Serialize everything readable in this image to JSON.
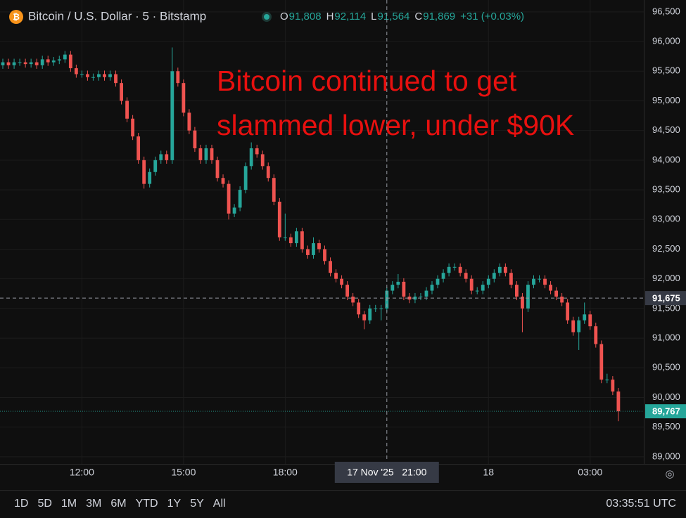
{
  "chart_data": {
    "type": "candlestick",
    "header": {
      "symbol": "Bitcoin / U.S. Dollar · 5 · Bitstamp",
      "o_key": "O",
      "o": "91,808",
      "h_key": "H",
      "h": "92,114",
      "l_key": "L",
      "l": "91,564",
      "c_key": "C",
      "c": "91,869",
      "change": "+31 (+0.03%)"
    },
    "annotation": [
      "Bitcoin continued to get",
      "slammed lower, under $90K"
    ],
    "up_color": "#26a69a",
    "down_color": "#ef5350",
    "annotation_color": "#e8100f",
    "open": [
      95600,
      95650,
      95600,
      95650,
      95650,
      95620,
      95650,
      95600,
      95700,
      95650,
      95680,
      95700,
      95780,
      95550,
      95450,
      95450,
      95400,
      95400,
      95450,
      95400,
      95450,
      95300,
      95000,
      94700,
      94400,
      94000,
      93600,
      93800,
      94000,
      94100,
      94000,
      95500,
      95300,
      94800,
      94500,
      94200,
      94000,
      94200,
      94000,
      93700,
      93600,
      93100,
      93200,
      93500,
      93900,
      94200,
      94100,
      93900,
      93700,
      93300,
      92700,
      92700,
      92600,
      92800,
      92500,
      92400,
      92600,
      92500,
      92300,
      92100,
      92000,
      91900,
      91700,
      91600,
      91400,
      91300,
      91500,
      91500,
      91500,
      91800,
      91900,
      91950,
      91700,
      91650,
      91700,
      91700,
      91800,
      91900,
      92000,
      92100,
      92200,
      92200,
      92100,
      92000,
      91800,
      91800,
      91900,
      92000,
      92100,
      92200,
      92100,
      91900,
      91700,
      91500,
      91900,
      92000,
      92000,
      91900,
      91800,
      91700,
      91600,
      91300,
      91100,
      91300,
      91400,
      91200,
      90900,
      90300,
      90300,
      90100
    ],
    "high": [
      95710,
      95710,
      95710,
      95710,
      95710,
      95710,
      95710,
      95760,
      95760,
      95740,
      95760,
      95840,
      95840,
      95610,
      95510,
      95510,
      95460,
      95510,
      95510,
      95510,
      95510,
      95360,
      95060,
      94760,
      94460,
      94060,
      93860,
      94060,
      94160,
      94160,
      95900,
      95560,
      95360,
      94860,
      94560,
      94260,
      94260,
      94260,
      94060,
      93760,
      93660,
      93260,
      93560,
      93960,
      94300,
      94260,
      94160,
      93960,
      93760,
      93360,
      93100,
      92760,
      92860,
      92860,
      92560,
      92700,
      92660,
      92560,
      92360,
      92160,
      92060,
      91960,
      91760,
      91660,
      91460,
      91560,
      91560,
      91560,
      91860,
      91960,
      92080,
      92010,
      91760,
      91760,
      91760,
      91860,
      91960,
      92060,
      92160,
      92260,
      92260,
      92260,
      92160,
      92060,
      91860,
      91960,
      92060,
      92160,
      92260,
      92260,
      92160,
      91960,
      91760,
      91960,
      92060,
      92060,
      92060,
      91960,
      91860,
      91760,
      91660,
      91360,
      91360,
      91600,
      91460,
      91260,
      90960,
      90400,
      90360,
      90160
    ],
    "low": [
      95540,
      95540,
      95540,
      95590,
      95560,
      95560,
      95540,
      95540,
      95590,
      95590,
      95620,
      95640,
      95490,
      95390,
      95390,
      95340,
      95340,
      95340,
      95340,
      95340,
      95240,
      94940,
      94640,
      94340,
      93940,
      93520,
      93540,
      93740,
      93940,
      93940,
      93940,
      95240,
      94740,
      94440,
      94140,
      93940,
      93940,
      93940,
      93640,
      93540,
      93000,
      93040,
      93140,
      93440,
      93840,
      94040,
      93840,
      93640,
      93240,
      92640,
      92640,
      92540,
      92540,
      92440,
      92340,
      92340,
      92440,
      92240,
      92040,
      91940,
      91840,
      91640,
      91540,
      91340,
      91150,
      91240,
      91440,
      91300,
      91440,
      91740,
      91840,
      91640,
      91590,
      91590,
      91640,
      91640,
      91740,
      91840,
      91940,
      92040,
      92140,
      92040,
      91940,
      91740,
      91740,
      91740,
      91840,
      91940,
      92040,
      92040,
      91840,
      91640,
      91100,
      91440,
      91840,
      91940,
      91840,
      91740,
      91640,
      91540,
      91240,
      91040,
      90800,
      91240,
      91140,
      90840,
      90240,
      90240,
      90040,
      89600
    ],
    "close": [
      95650,
      95600,
      95650,
      95650,
      95620,
      95650,
      95600,
      95700,
      95650,
      95680,
      95700,
      95780,
      95550,
      95450,
      95450,
      95400,
      95400,
      95450,
      95400,
      95450,
      95300,
      95000,
      94700,
      94400,
      94000,
      93600,
      93800,
      94000,
      94100,
      94000,
      95500,
      95300,
      94800,
      94500,
      94200,
      94000,
      94200,
      94000,
      93700,
      93600,
      93100,
      93200,
      93500,
      93900,
      94200,
      94100,
      93900,
      93700,
      93300,
      92700,
      92700,
      92600,
      92800,
      92500,
      92400,
      92600,
      92500,
      92300,
      92100,
      92000,
      91900,
      91700,
      91600,
      91400,
      91300,
      91500,
      91500,
      91500,
      91800,
      91900,
      91950,
      91700,
      91650,
      91700,
      91700,
      91800,
      91900,
      92000,
      92100,
      92200,
      92200,
      92100,
      92000,
      91800,
      91800,
      91900,
      92000,
      92100,
      92200,
      92100,
      91900,
      91700,
      91500,
      91900,
      92000,
      92000,
      91900,
      91800,
      91700,
      91600,
      91300,
      91100,
      91300,
      91400,
      91200,
      90900,
      90300,
      90300,
      90100,
      89767
    ],
    "xlim": [
      -0.5,
      113.5
    ],
    "xticks": [
      {
        "value": 14,
        "label": "12:00"
      },
      {
        "value": 32,
        "label": "15:00"
      },
      {
        "value": 50,
        "label": "18:00"
      },
      {
        "value": 86,
        "label": "18"
      },
      {
        "value": 104,
        "label": "03:00"
      }
    ],
    "ylim": [
      88880,
      96700
    ],
    "yticks": [
      {
        "value": 89000,
        "label": "89,000"
      },
      {
        "value": 89500,
        "label": "89,500"
      },
      {
        "value": 90000,
        "label": "90,000"
      },
      {
        "value": 90500,
        "label": "90,500"
      },
      {
        "value": 91000,
        "label": "91,000"
      },
      {
        "value": 91500,
        "label": "91,500"
      },
      {
        "value": 92000,
        "label": "92,000"
      },
      {
        "value": 92500,
        "label": "92,500"
      },
      {
        "value": 93000,
        "label": "93,000"
      },
      {
        "value": 93500,
        "label": "93,500"
      },
      {
        "value": 94000,
        "label": "94,000"
      },
      {
        "value": 94500,
        "label": "94,500"
      },
      {
        "value": 95000,
        "label": "95,000"
      },
      {
        "value": 95500,
        "label": "95,500"
      },
      {
        "value": 96000,
        "label": "96,000"
      },
      {
        "value": 96500,
        "label": "96,500"
      }
    ],
    "grid": true,
    "crosshair": {
      "price": {
        "value": 91675,
        "label": "91,675"
      },
      "time": {
        "value": 68,
        "label": "17 Nov '25   21:00"
      }
    },
    "last_price": {
      "value": 89767,
      "label": "89,767"
    },
    "ranges": [
      "1D",
      "5D",
      "1M",
      "3M",
      "6M",
      "YTD",
      "1Y",
      "5Y",
      "All"
    ],
    "clock": "03:35:51 UTC"
  }
}
